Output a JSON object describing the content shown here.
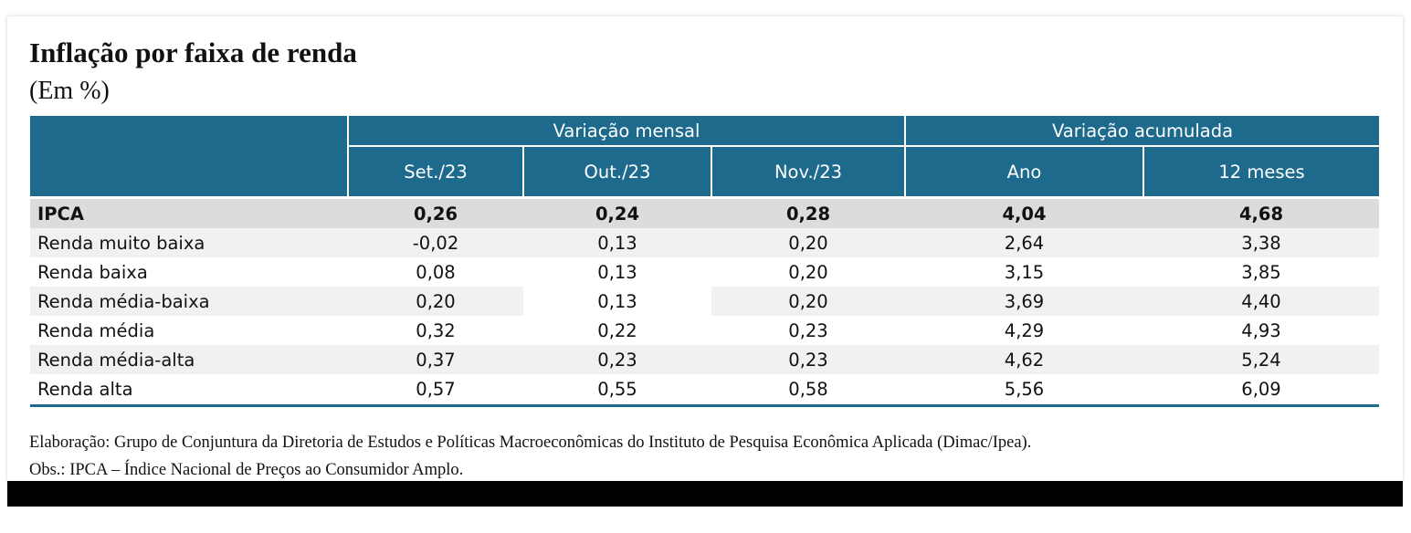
{
  "title": "Inflação por faixa de renda",
  "subtitle": "(Em %)",
  "table": {
    "group_headers": [
      "Variação mensal",
      "Variação acumulada"
    ],
    "columns": [
      "Set./23",
      "Out./23",
      "Nov./23",
      "Ano",
      "12 meses"
    ],
    "rows": [
      {
        "label": "IPCA",
        "values": [
          "0,26",
          "0,24",
          "0,28",
          "4,04",
          "4,68"
        ]
      },
      {
        "label": "Renda muito baixa",
        "values": [
          "-0,02",
          "0,13",
          "0,20",
          "2,64",
          "3,38"
        ]
      },
      {
        "label": "Renda baixa",
        "values": [
          "0,08",
          "0,13",
          "0,20",
          "3,15",
          "3,85"
        ]
      },
      {
        "label": "Renda média-baixa",
        "values": [
          "0,20",
          "0,13",
          "0,20",
          "3,69",
          "4,40"
        ]
      },
      {
        "label": "Renda média",
        "values": [
          "0,32",
          "0,22",
          "0,23",
          "4,29",
          "4,93"
        ]
      },
      {
        "label": "Renda média-alta",
        "values": [
          "0,37",
          "0,23",
          "0,23",
          "4,62",
          "5,24"
        ]
      },
      {
        "label": "Renda alta",
        "values": [
          "0,57",
          "0,55",
          "0,58",
          "5,56",
          "6,09"
        ]
      }
    ]
  },
  "notes": {
    "source": "Elaboração: Grupo de Conjuntura da Diretoria de Estudos e Políticas Macroeconômicas do Instituto de Pesquisa Econômica Aplicada (Dimac/Ipea).",
    "obs": "Obs.: IPCA – Índice Nacional de Preços ao Consumidor Amplo."
  },
  "colors": {
    "header_bg": "#1d6a8d",
    "header_text": "#ffffff",
    "highlight_row": "#dcdcdc",
    "stripe_row": "#f1f1f1"
  }
}
